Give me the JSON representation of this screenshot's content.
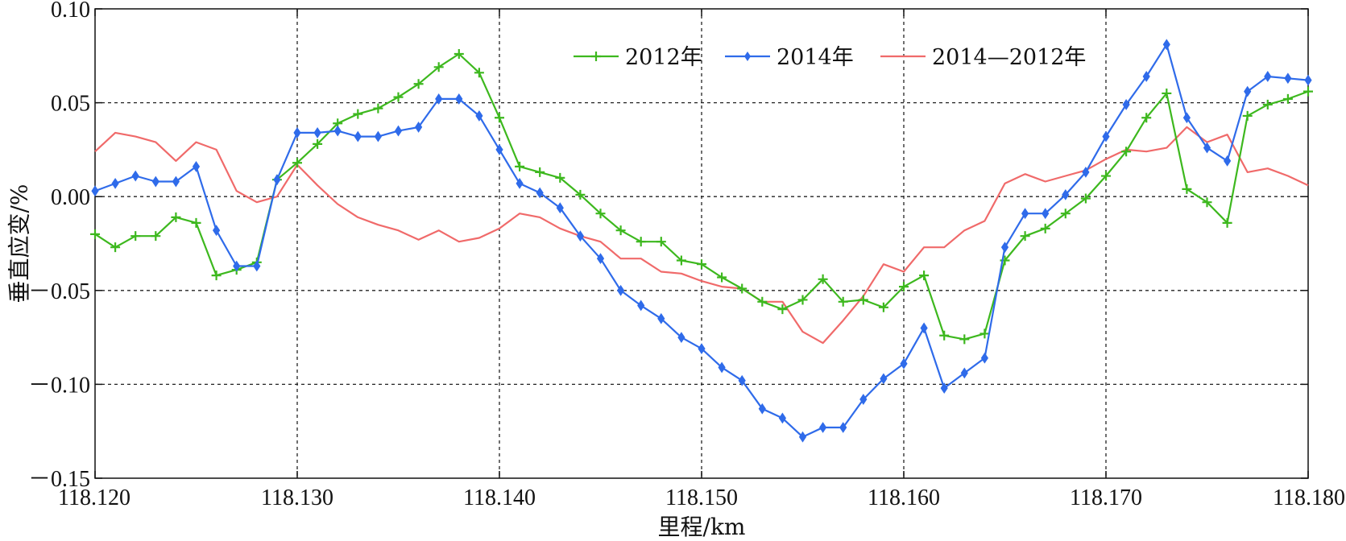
{
  "chart_data": {
    "type": "line",
    "xlabel": "里程/km",
    "ylabel": "垂直应变/%",
    "xlim": [
      118.12,
      118.18
    ],
    "ylim": [
      -0.15,
      0.1
    ],
    "x_ticks": [
      {
        "value": 118.12,
        "label": "118.120"
      },
      {
        "value": 118.13,
        "label": "118.130"
      },
      {
        "value": 118.14,
        "label": "118.140"
      },
      {
        "value": 118.15,
        "label": "118.150"
      },
      {
        "value": 118.16,
        "label": "118.160"
      },
      {
        "value": 118.17,
        "label": "118.170"
      },
      {
        "value": 118.18,
        "label": "118.180"
      }
    ],
    "y_ticks": [
      {
        "value": 0.1,
        "label": "0.10"
      },
      {
        "value": 0.05,
        "label": "0.05"
      },
      {
        "value": 0.0,
        "label": "0.00"
      },
      {
        "value": -0.05,
        "label": "－0.05"
      },
      {
        "value": -0.1,
        "label": "－0.10"
      },
      {
        "value": -0.15,
        "label": "－0.15"
      }
    ],
    "grid": "dashed",
    "legend_position": "top",
    "x_start": 118.12,
    "x_step": 0.001,
    "series": [
      {
        "name": "2012年",
        "color": "#3db81e",
        "marker": "plus",
        "values": [
          -0.02,
          -0.027,
          -0.021,
          -0.021,
          -0.011,
          -0.014,
          -0.042,
          -0.039,
          -0.035,
          0.009,
          0.018,
          0.028,
          0.039,
          0.044,
          0.047,
          0.053,
          0.06,
          0.069,
          0.076,
          0.066,
          0.042,
          0.016,
          0.013,
          0.01,
          0.001,
          -0.009,
          -0.018,
          -0.024,
          -0.024,
          -0.034,
          -0.036,
          -0.043,
          -0.049,
          -0.056,
          -0.06,
          -0.055,
          -0.044,
          -0.056,
          -0.055,
          -0.059,
          -0.048,
          -0.042,
          -0.074,
          -0.076,
          -0.073,
          -0.034,
          -0.021,
          -0.017,
          -0.009,
          -0.001,
          0.011,
          0.024,
          0.042,
          0.055,
          0.004,
          -0.003,
          -0.014,
          0.043,
          0.049,
          0.052,
          0.056
        ]
      },
      {
        "name": "2014年",
        "color": "#2f6bea",
        "marker": "diamond",
        "values": [
          0.003,
          0.007,
          0.011,
          0.008,
          0.008,
          0.016,
          -0.018,
          -0.037,
          -0.037,
          0.009,
          0.034,
          0.034,
          0.035,
          0.032,
          0.032,
          0.035,
          0.037,
          0.052,
          0.052,
          0.043,
          0.025,
          0.007,
          0.002,
          -0.006,
          -0.021,
          -0.033,
          -0.05,
          -0.058,
          -0.065,
          -0.075,
          -0.081,
          -0.091,
          -0.098,
          -0.113,
          -0.118,
          -0.128,
          -0.123,
          -0.123,
          -0.108,
          -0.097,
          -0.089,
          -0.07,
          -0.102,
          -0.094,
          -0.086,
          -0.027,
          -0.009,
          -0.009,
          0.001,
          0.013,
          0.032,
          0.049,
          0.064,
          0.081,
          0.042,
          0.026,
          0.019,
          0.056,
          0.064,
          0.063,
          0.062
        ]
      },
      {
        "name": "2014—2012年",
        "color": "#f06a6a",
        "marker": "none",
        "values": [
          0.024,
          0.034,
          0.032,
          0.029,
          0.019,
          0.029,
          0.025,
          0.003,
          -0.003,
          0.0,
          0.017,
          0.006,
          -0.004,
          -0.011,
          -0.015,
          -0.018,
          -0.023,
          -0.018,
          -0.024,
          -0.022,
          -0.017,
          -0.009,
          -0.011,
          -0.017,
          -0.021,
          -0.024,
          -0.033,
          -0.033,
          -0.04,
          -0.041,
          -0.045,
          -0.048,
          -0.049,
          -0.056,
          -0.056,
          -0.072,
          -0.078,
          -0.066,
          -0.053,
          -0.036,
          -0.04,
          -0.027,
          -0.027,
          -0.018,
          -0.013,
          0.007,
          0.012,
          0.008,
          0.011,
          0.014,
          0.02,
          0.025,
          0.024,
          0.026,
          0.037,
          0.029,
          0.033,
          0.013,
          0.015,
          0.011,
          0.006
        ]
      }
    ]
  }
}
